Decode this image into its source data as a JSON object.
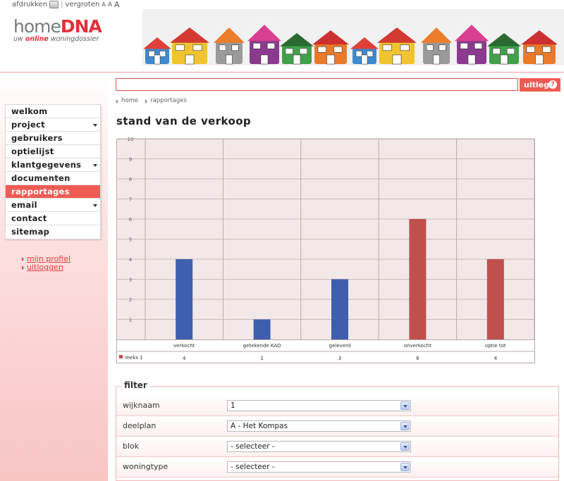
{
  "topbar": {
    "print_label": "afdrukken",
    "separator": "|",
    "zoom_label": "vergroten",
    "zoom_sizes": [
      "A",
      "A",
      "A"
    ]
  },
  "logo": {
    "part1": "home",
    "part2": "DNA",
    "tagline_pre": "uw ",
    "tagline_em": "online",
    "tagline_post": " woningdossier"
  },
  "menu": {
    "items": [
      {
        "label": "welkom",
        "has_submenu": false
      },
      {
        "label": "project",
        "has_submenu": true
      },
      {
        "label": "gebruikers",
        "has_submenu": false
      },
      {
        "label": "optielijst",
        "has_submenu": false
      },
      {
        "label": "klantgegevens",
        "has_submenu": true
      },
      {
        "label": "documenten",
        "has_submenu": false
      },
      {
        "label": "rapportages",
        "has_submenu": false,
        "active": true
      },
      {
        "label": "email",
        "has_submenu": true
      },
      {
        "label": "contact",
        "has_submenu": false
      },
      {
        "label": "sitemap",
        "has_submenu": false
      }
    ]
  },
  "sublinks": {
    "profile": "mijn profiel",
    "logout": "uitloggen"
  },
  "search": {
    "value": "",
    "button_label": "uitleg",
    "help_glyph": "?"
  },
  "breadcrumb": [
    "home",
    "rapportages"
  ],
  "page_title": "stand van de verkoop",
  "chart_data": {
    "type": "bar",
    "categories": [
      "verkocht",
      "getekende KAO",
      "geleverd",
      "onverkocht",
      "optie tot"
    ],
    "values": [
      4,
      1,
      3,
      6,
      4
    ],
    "series": [
      {
        "name": "reeks 1",
        "values": [
          4,
          1,
          3,
          6,
          4
        ]
      }
    ],
    "bar_colors": [
      "#3f5fae",
      "#3f5fae",
      "#3f5fae",
      "#c0504d",
      "#c0504d"
    ],
    "ylim": [
      0,
      10
    ],
    "yticks": [
      1,
      2,
      3,
      4,
      5,
      6,
      7,
      8,
      9,
      10
    ],
    "grid": true,
    "legend_color": "#c0504d"
  },
  "filter": {
    "legend": "filter",
    "rows": [
      {
        "label": "wijknaam",
        "value": "1"
      },
      {
        "label": "deelplan",
        "value": "A - Het Kompas"
      },
      {
        "label": "blok",
        "value": "- selecteer -"
      },
      {
        "label": "woningtype",
        "value": "- selecteer -"
      }
    ]
  },
  "colors": {
    "accent": "#ef5c53",
    "link": "#e0413a",
    "bar_blue": "#3f5fae",
    "bar_red": "#c0504d",
    "plot_bg": "#f3e8e8"
  }
}
